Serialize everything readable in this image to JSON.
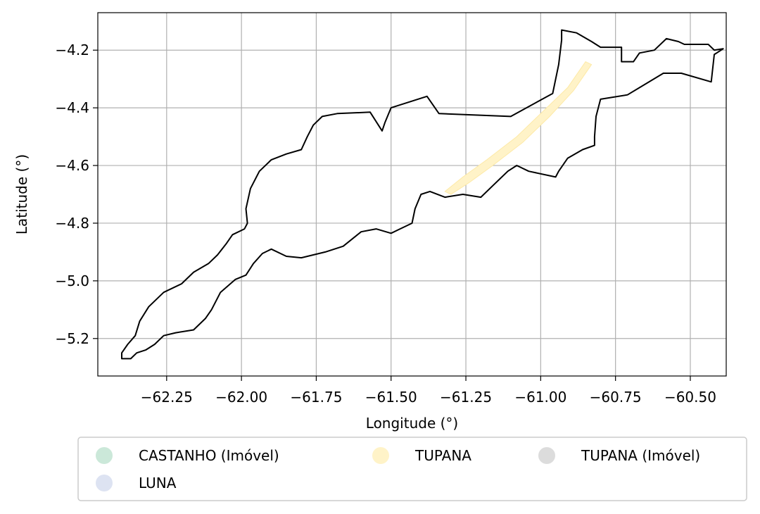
{
  "chart_data": {
    "type": "map",
    "title": "",
    "xlabel": "Longitude (°)",
    "ylabel": "Latitude (°)",
    "xlim": [
      -62.48,
      -60.38
    ],
    "ylim": [
      -5.33,
      -4.07
    ],
    "x_ticks": [
      -62.25,
      -62.0,
      -61.75,
      -61.5,
      -61.25,
      -61.0,
      -60.75,
      -60.5
    ],
    "x_tick_labels": [
      "−62.25",
      "−62.00",
      "−61.75",
      "−61.50",
      "−61.25",
      "−61.00",
      "−60.75",
      "−60.50"
    ],
    "y_ticks": [
      -4.2,
      -4.4,
      -4.6,
      -4.8,
      -5.0,
      -5.2
    ],
    "y_tick_labels": [
      "−4.2",
      "−4.4",
      "−4.6",
      "−4.8",
      "−5.0",
      "−5.2"
    ],
    "grid": true,
    "legend": {
      "placement": "below",
      "columns": 3,
      "entries": [
        {
          "label": "CASTANHO (Imóvel)",
          "color": "#cbe8d9"
        },
        {
          "label": "TUPANA",
          "color": "#fff3c8"
        },
        {
          "label": "TUPANA (Imóvel)",
          "color": "#dcdcdc"
        },
        {
          "label": "LUNA",
          "color": "#dde3f2"
        }
      ]
    },
    "boundary": [
      [
        -62.37,
        -5.27
      ],
      [
        -62.4,
        -5.27
      ],
      [
        -62.4,
        -5.25
      ],
      [
        -62.38,
        -5.22
      ],
      [
        -62.355,
        -5.19
      ],
      [
        -62.34,
        -5.14
      ],
      [
        -62.31,
        -5.09
      ],
      [
        -62.26,
        -5.04
      ],
      [
        -62.2,
        -5.01
      ],
      [
        -62.16,
        -4.97
      ],
      [
        -62.11,
        -4.94
      ],
      [
        -62.08,
        -4.91
      ],
      [
        -62.05,
        -4.87
      ],
      [
        -62.03,
        -4.84
      ],
      [
        -61.99,
        -4.82
      ],
      [
        -61.98,
        -4.8
      ],
      [
        -61.985,
        -4.75
      ],
      [
        -61.97,
        -4.68
      ],
      [
        -61.94,
        -4.62
      ],
      [
        -61.9,
        -4.58
      ],
      [
        -61.85,
        -4.56
      ],
      [
        -61.8,
        -4.545
      ],
      [
        -61.78,
        -4.5
      ],
      [
        -61.76,
        -4.46
      ],
      [
        -61.73,
        -4.43
      ],
      [
        -61.68,
        -4.42
      ],
      [
        -61.57,
        -4.415
      ],
      [
        -61.53,
        -4.48
      ],
      [
        -61.52,
        -4.45
      ],
      [
        -61.5,
        -4.4
      ],
      [
        -61.38,
        -4.36
      ],
      [
        -61.34,
        -4.42
      ],
      [
        -61.1,
        -4.43
      ],
      [
        -60.96,
        -4.35
      ],
      [
        -60.94,
        -4.25
      ],
      [
        -60.93,
        -4.165
      ],
      [
        -60.93,
        -4.13
      ],
      [
        -60.88,
        -4.14
      ],
      [
        -60.83,
        -4.17
      ],
      [
        -60.8,
        -4.19
      ],
      [
        -60.73,
        -4.19
      ],
      [
        -60.73,
        -4.24
      ],
      [
        -60.69,
        -4.24
      ],
      [
        -60.67,
        -4.21
      ],
      [
        -60.62,
        -4.2
      ],
      [
        -60.58,
        -4.16
      ],
      [
        -60.54,
        -4.17
      ],
      [
        -60.52,
        -4.18
      ],
      [
        -60.44,
        -4.18
      ],
      [
        -60.42,
        -4.2
      ],
      [
        -60.39,
        -4.195
      ],
      [
        -60.42,
        -4.215
      ],
      [
        -60.43,
        -4.31
      ],
      [
        -60.53,
        -4.28
      ],
      [
        -60.59,
        -4.28
      ],
      [
        -60.71,
        -4.355
      ],
      [
        -60.8,
        -4.37
      ],
      [
        -60.815,
        -4.43
      ],
      [
        -60.82,
        -4.5
      ],
      [
        -60.82,
        -4.53
      ],
      [
        -60.86,
        -4.545
      ],
      [
        -60.91,
        -4.575
      ],
      [
        -60.94,
        -4.62
      ],
      [
        -60.95,
        -4.64
      ],
      [
        -61.04,
        -4.62
      ],
      [
        -61.08,
        -4.6
      ],
      [
        -61.11,
        -4.62
      ],
      [
        -61.16,
        -4.67
      ],
      [
        -61.2,
        -4.71
      ],
      [
        -61.26,
        -4.7
      ],
      [
        -61.32,
        -4.71
      ],
      [
        -61.37,
        -4.69
      ],
      [
        -61.4,
        -4.7
      ],
      [
        -61.42,
        -4.75
      ],
      [
        -61.43,
        -4.8
      ],
      [
        -61.47,
        -4.82
      ],
      [
        -61.5,
        -4.835
      ],
      [
        -61.55,
        -4.82
      ],
      [
        -61.6,
        -4.83
      ],
      [
        -61.66,
        -4.88
      ],
      [
        -61.72,
        -4.9
      ],
      [
        -61.8,
        -4.92
      ],
      [
        -61.85,
        -4.915
      ],
      [
        -61.9,
        -4.89
      ],
      [
        -61.93,
        -4.905
      ],
      [
        -61.96,
        -4.94
      ],
      [
        -61.985,
        -4.98
      ],
      [
        -62.02,
        -4.995
      ],
      [
        -62.07,
        -5.04
      ],
      [
        -62.1,
        -5.1
      ],
      [
        -62.12,
        -5.13
      ],
      [
        -62.16,
        -5.17
      ],
      [
        -62.22,
        -5.18
      ],
      [
        -62.26,
        -5.19
      ],
      [
        -62.29,
        -5.22
      ],
      [
        -62.32,
        -5.24
      ],
      [
        -62.35,
        -5.25
      ],
      [
        -62.37,
        -5.27
      ]
    ],
    "tupana_band": [
      [
        -61.32,
        -4.69
      ],
      [
        -61.26,
        -4.64
      ],
      [
        -61.18,
        -4.58
      ],
      [
        -61.08,
        -4.5
      ],
      [
        -60.99,
        -4.41
      ],
      [
        -60.91,
        -4.33
      ],
      [
        -60.85,
        -4.24
      ],
      [
        -60.83,
        -4.25
      ],
      [
        -60.89,
        -4.34
      ],
      [
        -60.97,
        -4.43
      ],
      [
        -61.06,
        -4.52
      ],
      [
        -61.16,
        -4.6
      ],
      [
        -61.24,
        -4.66
      ],
      [
        -61.3,
        -4.7
      ]
    ]
  }
}
